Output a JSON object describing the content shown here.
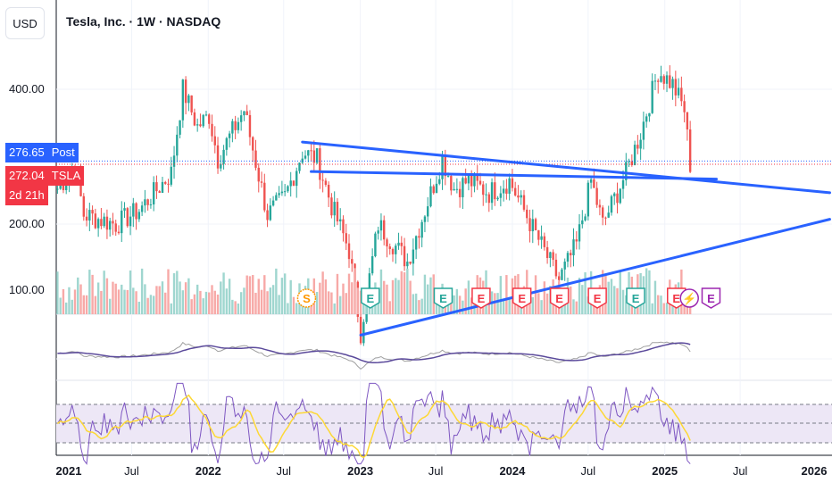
{
  "header": {
    "currency": "USD",
    "title": "Tesla, Inc. · 1W · NASDAQ"
  },
  "colors": {
    "up": "#26a69a",
    "down": "#ef5350",
    "trend": "#2962ff",
    "ma": "#5b4a9b",
    "rsi": "#7e57c2",
    "rsi_ma": "#fdd835",
    "post": "#2962ff",
    "last": "#f23645",
    "volume_up": "#9fd6cf",
    "volume_down": "#f7a9a7",
    "earnings_green": "#26a69a",
    "earnings_red": "#f23645",
    "earnings_future": "#9c27b0",
    "split": "#ff9800"
  },
  "price_axis": {
    "labels": [
      "400.00",
      "200.00",
      "100.00"
    ]
  },
  "price_tags": {
    "post_price": "276.65",
    "post_label": "Post",
    "last_price": "272.04",
    "last_label": "TSLA",
    "countdown": "2d 21h"
  },
  "time_axis": {
    "labels": [
      {
        "text": "2021",
        "bold": true
      },
      {
        "text": "Jul",
        "bold": false
      },
      {
        "text": "2022",
        "bold": true
      },
      {
        "text": "Jul",
        "bold": false
      },
      {
        "text": "2023",
        "bold": true
      },
      {
        "text": "Jul",
        "bold": false
      },
      {
        "text": "2024",
        "bold": true
      },
      {
        "text": "Jul",
        "bold": false
      },
      {
        "text": "2025",
        "bold": true
      },
      {
        "text": "Jul",
        "bold": false
      },
      {
        "text": "2026",
        "bold": true
      }
    ]
  },
  "events": [
    {
      "type": "split",
      "symbol": "S",
      "date": "2022-08-25"
    },
    {
      "type": "earnings",
      "symbol": "E",
      "date": "2023-01-25",
      "result": "beat"
    },
    {
      "type": "earnings",
      "symbol": "E",
      "date": "2023-07-19",
      "result": "beat"
    },
    {
      "type": "earnings",
      "symbol": "E",
      "date": "2023-10-18",
      "result": "miss"
    },
    {
      "type": "earnings",
      "symbol": "E",
      "date": "2024-01-24",
      "result": "miss"
    },
    {
      "type": "earnings",
      "symbol": "E",
      "date": "2024-04-23",
      "result": "miss"
    },
    {
      "type": "earnings",
      "symbol": "E",
      "date": "2024-07-23",
      "result": "miss"
    },
    {
      "type": "earnings",
      "symbol": "E",
      "date": "2024-10-23",
      "result": "beat"
    },
    {
      "type": "earnings",
      "symbol": "E",
      "date": "2025-01-29",
      "result": "miss"
    },
    {
      "type": "dividend-flash",
      "symbol": "⚡",
      "date": "2025-03-01"
    },
    {
      "type": "earnings",
      "symbol": "E",
      "date": "2025-04-22",
      "result": "upcoming"
    }
  ],
  "chart_data": {
    "type": "candlestick",
    "symbol": "TSLA",
    "interval": "1W",
    "y_scale": "log",
    "price_series": {
      "date": [
        "2021-01-04",
        "2021-02-15",
        "2021-03-08",
        "2021-05-24",
        "2021-07-19",
        "2021-10-04",
        "2021-11-01",
        "2021-12-06",
        "2022-01-03",
        "2022-01-24",
        "2022-03-28",
        "2022-05-23",
        "2022-07-04",
        "2022-08-15",
        "2022-09-19",
        "2022-10-24",
        "2022-12-05",
        "2023-01-02",
        "2023-02-13",
        "2023-04-24",
        "2023-07-17",
        "2023-08-14",
        "2023-09-18",
        "2023-11-06",
        "2023-12-25",
        "2024-02-26",
        "2024-04-22",
        "2024-06-03",
        "2024-07-08",
        "2024-08-05",
        "2024-09-30",
        "2024-11-04",
        "2024-12-16",
        "2025-01-20",
        "2025-02-17",
        "2025-03-03"
      ],
      "close": [
        240,
        270,
        210,
        200,
        215,
        260,
        400,
        330,
        350,
        280,
        360,
        210,
        230,
        290,
        280,
        220,
        175,
        115,
        200,
        165,
        280,
        240,
        250,
        235,
        250,
        190,
        150,
        180,
        250,
        200,
        260,
        320,
        440,
        410,
        360,
        272
      ]
    },
    "trendlines": [
      {
        "name": "upper-descending",
        "points": [
          [
            "2022-08-15",
            305
          ],
          [
            "2026-02-01",
            235
          ]
        ]
      },
      {
        "name": "lower-ascending",
        "points": [
          [
            "2023-01-02",
            113
          ],
          [
            "2026-02-01",
            205
          ]
        ]
      },
      {
        "name": "horizontal-support",
        "points": [
          [
            "2022-09-05",
            262
          ],
          [
            "2025-05-05",
            252
          ]
        ]
      }
    ],
    "indicators": {
      "moving_average_pane": true,
      "rsi_pane": {
        "upper_band": 70,
        "lower_band": 30,
        "mid": 50
      }
    }
  }
}
